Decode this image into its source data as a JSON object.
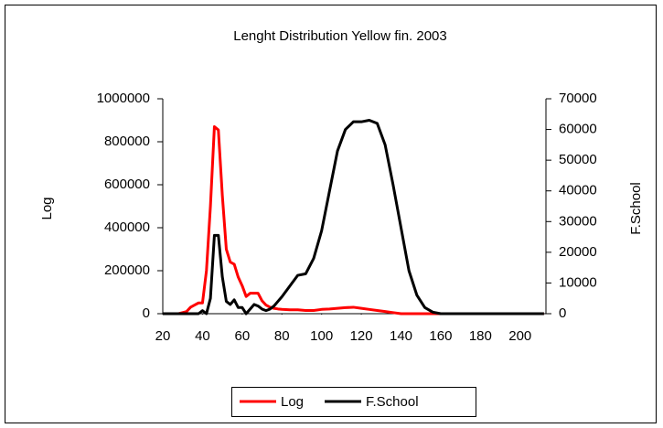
{
  "chart_data": {
    "type": "line",
    "title": "Lenght Distribution Yellow fin. 2003",
    "y_label": "Log",
    "y2_label": "F.School",
    "x": [
      20,
      24,
      28,
      32,
      34,
      36,
      38,
      40,
      42,
      44,
      46,
      48,
      50,
      52,
      54,
      56,
      58,
      60,
      62,
      64,
      66,
      68,
      70,
      72,
      74,
      76,
      78,
      80,
      84,
      88,
      92,
      96,
      100,
      104,
      108,
      112,
      116,
      120,
      124,
      128,
      132,
      136,
      140,
      144,
      148,
      152,
      156,
      160,
      164,
      170,
      180,
      190,
      200,
      212
    ],
    "series": [
      {
        "name": "Log",
        "color": "#ff0000",
        "values": [
          0,
          0,
          0,
          10000,
          30000,
          40000,
          50000,
          50000,
          200000,
          500000,
          870000,
          855000,
          550000,
          300000,
          240000,
          230000,
          170000,
          130000,
          80000,
          95000,
          95000,
          95000,
          60000,
          40000,
          30000,
          25000,
          22000,
          20000,
          18000,
          18000,
          15000,
          15000,
          20000,
          22000,
          25000,
          28000,
          30000,
          25000,
          20000,
          15000,
          10000,
          5000,
          0,
          0,
          0,
          0,
          0,
          0,
          0,
          0,
          0,
          0,
          0,
          0
        ]
      },
      {
        "name": "F.School",
        "color": "#000000",
        "axis": "y2",
        "values": [
          0,
          0,
          0,
          0,
          0,
          0,
          0,
          1000,
          0,
          5000,
          25500,
          25500,
          12000,
          4000,
          3000,
          4500,
          2000,
          2000,
          0,
          1500,
          3000,
          2500,
          1500,
          1000,
          1500,
          2500,
          4000,
          5500,
          9000,
          12500,
          13000,
          18000,
          27000,
          40000,
          53000,
          60000,
          62500,
          62500,
          63000,
          62000,
          55000,
          42000,
          28000,
          14000,
          6000,
          2000,
          500,
          0,
          0,
          0,
          0,
          0,
          0,
          0
        ]
      }
    ],
    "xlim": [
      20,
      213
    ],
    "xticks": [
      20,
      40,
      60,
      80,
      100,
      120,
      140,
      160,
      180,
      200
    ],
    "ylim": [
      0,
      1000000
    ],
    "yticks": [
      0,
      200000,
      400000,
      600000,
      800000,
      1000000
    ],
    "y2lim": [
      0,
      70000
    ],
    "y2ticks": [
      0,
      10000,
      20000,
      30000,
      40000,
      50000,
      60000,
      70000
    ],
    "legend": "bottom"
  }
}
